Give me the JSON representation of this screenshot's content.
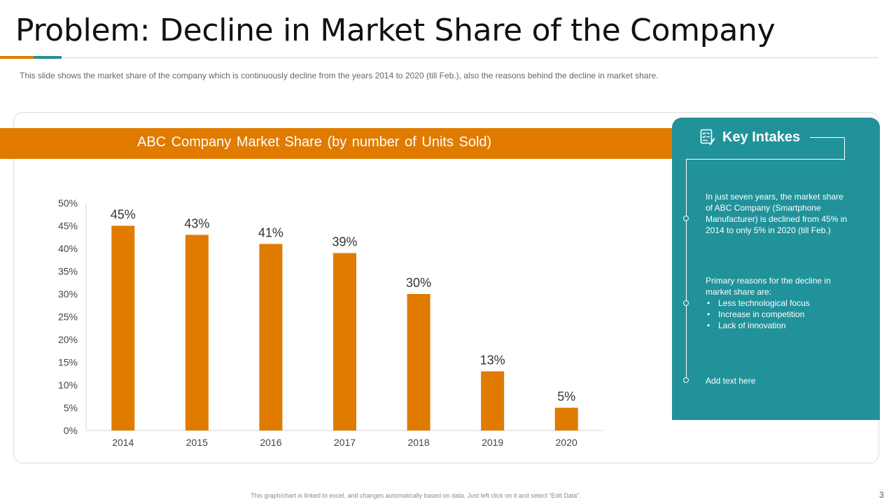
{
  "slide": {
    "title": "Problem: Decline in Market Share of the Company",
    "subtitle": "This slide shows the market share of the company which is continuously decline from the years 2014 to 2020 (till Feb.), also the reasons behind the decline in market share.",
    "footnote": "This graph/chart is linked to excel, and changes automatically based on data. Just left click on it and select “Edit Data”.",
    "page_number": "3",
    "colors": {
      "accent": "#e07b00",
      "teal": "#21929a"
    }
  },
  "key_intakes": {
    "title": "Key Intakes",
    "icon": "checklist-icon",
    "item1": "In just seven years, the market share of ABC Company (Smartphone Manufacturer) is declined from 45% in 2014 to only 5% in 2020 (till Feb.)",
    "item2_intro": "Primary reasons for the decline in market share are:",
    "reasons": [
      "Less technological focus",
      "Increase in competition",
      "Lack of innovation"
    ],
    "item3": "Add text here"
  },
  "chart_data": {
    "type": "bar",
    "title": "ABC Company Market Share (by number  of Units Sold)",
    "categories": [
      "2014",
      "2015",
      "2016",
      "2017",
      "2018",
      "2019",
      "2020"
    ],
    "values": [
      45,
      43,
      41,
      39,
      30,
      13,
      5
    ],
    "data_labels": [
      "45%",
      "43%",
      "41%",
      "39%",
      "30%",
      "13%",
      "5%"
    ],
    "yticks": [
      "0%",
      "5%",
      "10%",
      "15%",
      "20%",
      "25%",
      "30%",
      "35%",
      "40%",
      "45%",
      "50%"
    ],
    "ylim": [
      0,
      50
    ],
    "xlabel": "",
    "ylabel": "",
    "grid": false,
    "legend": "none",
    "bar_color": "#e07b00"
  }
}
